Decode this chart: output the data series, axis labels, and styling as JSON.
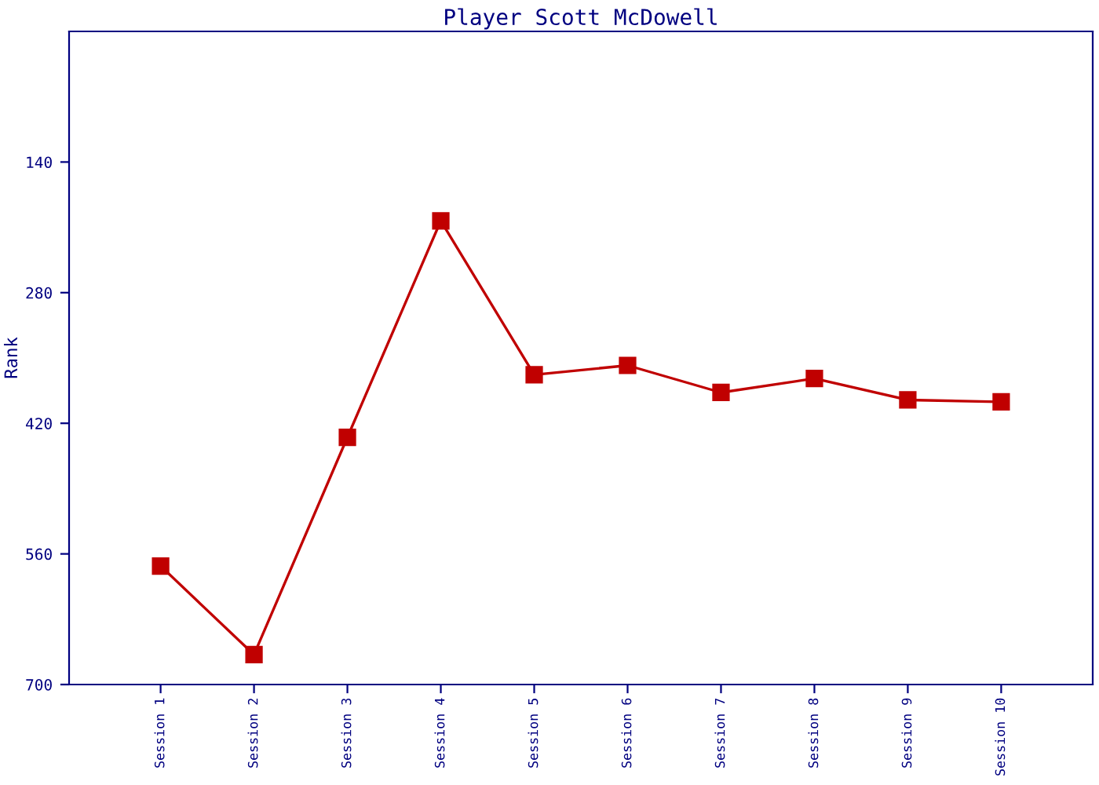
{
  "chart_data": {
    "type": "line",
    "title": "Player Scott McDowell",
    "ylabel": "Rank",
    "categories": [
      "Session 1",
      "Session 2",
      "Session 3",
      "Session 4",
      "Session 5",
      "Session 6",
      "Session 7",
      "Session 8",
      "Session 9",
      "Session 10"
    ],
    "series": [
      {
        "color": "#c00000",
        "values": [
          573,
          668,
          435,
          203,
          368,
          358,
          387,
          372,
          395,
          397
        ]
      }
    ],
    "ylim": [
      700,
      0
    ],
    "yticks": [
      140,
      280,
      420,
      560,
      700
    ],
    "grid": false,
    "legend": false,
    "marker": "square",
    "line_style": "solid"
  }
}
